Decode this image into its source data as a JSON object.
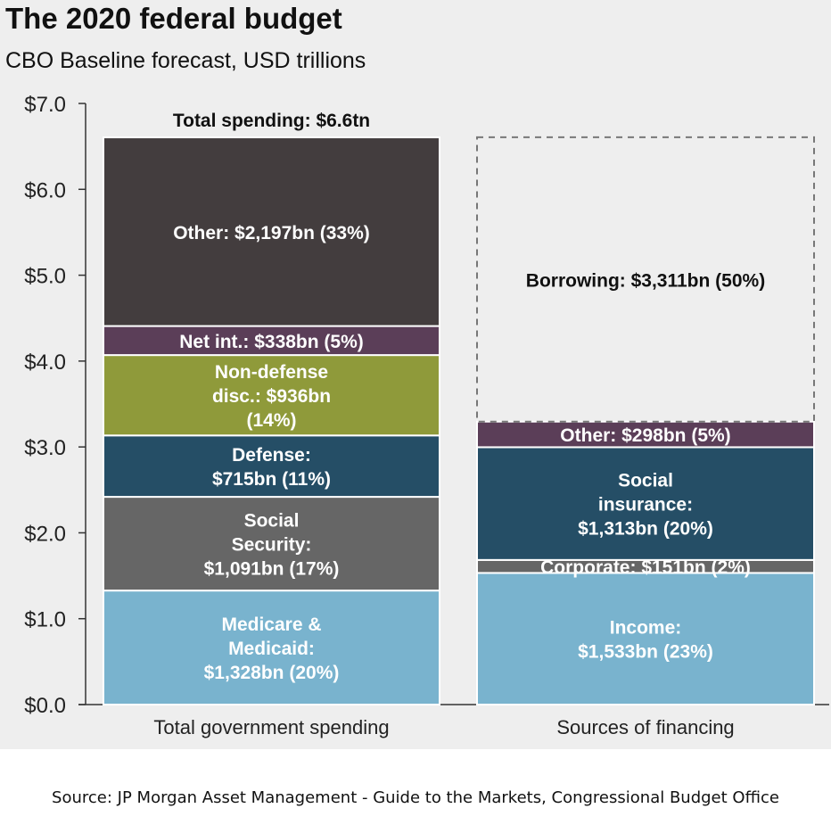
{
  "chart_data": {
    "type": "bar",
    "stacked": true,
    "title": "The 2020 federal budget",
    "subtitle": "CBO Baseline forecast, USD trillions",
    "ylim": [
      0,
      7
    ],
    "yticks": [
      "$0.0",
      "$1.0",
      "$2.0",
      "$3.0",
      "$4.0",
      "$5.0",
      "$6.0",
      "$7.0"
    ],
    "categories": [
      "Total government spending",
      "Sources of financing"
    ],
    "total_label": "Total spending: $6.6tn",
    "bars": [
      {
        "category": "Total government spending",
        "segments": [
          {
            "value": 1.328,
            "color": "#79b3ce",
            "text_color": "#ffffff",
            "lines": [
              "Medicare &",
              "Medicaid:",
              "$1,328bn (20%)"
            ]
          },
          {
            "value": 1.091,
            "color": "#666666",
            "text_color": "#ffffff",
            "lines": [
              "Social",
              "Security:",
              "$1,091bn (17%)"
            ]
          },
          {
            "value": 0.715,
            "color": "#254e66",
            "text_color": "#ffffff",
            "lines": [
              "Defense:",
              "$715bn (11%)"
            ]
          },
          {
            "value": 0.936,
            "color": "#8f9a3a",
            "text_color": "#ffffff",
            "lines": [
              "Non-defense",
              "disc.: $936bn",
              "(14%)"
            ]
          },
          {
            "value": 0.338,
            "color": "#5b3e58",
            "text_color": "#ffffff",
            "lines": [
              "Net int.: $338bn (5%)"
            ]
          },
          {
            "value": 2.197,
            "color": "#433d3e",
            "text_color": "#ffffff",
            "lines": [
              "Other: $2,197bn (33%)"
            ]
          }
        ]
      },
      {
        "category": "Sources of financing",
        "segments": [
          {
            "value": 1.533,
            "color": "#79b3ce",
            "text_color": "#ffffff",
            "lines": [
              "Income:",
              "$1,533bn (23%)"
            ]
          },
          {
            "value": 0.151,
            "color": "#666666",
            "text_color": "#ffffff",
            "lines": [
              "Corporate: $151bn (2%)"
            ]
          },
          {
            "value": 1.313,
            "color": "#254e66",
            "text_color": "#ffffff",
            "lines": [
              "Social",
              "insurance:",
              "$1,313bn (20%)"
            ]
          },
          {
            "value": 0.298,
            "color": "#5b3e58",
            "text_color": "#ffffff",
            "lines": [
              "Other: $298bn (5%)"
            ]
          },
          {
            "value": 3.311,
            "color": "none",
            "dashed": true,
            "text_color": "#111111",
            "lines": [
              "Borrowing: $3,311bn (50%)"
            ]
          }
        ]
      }
    ]
  },
  "source": "Source:  JP Morgan Asset Management - Guide to the Markets, Congressional Budget Office"
}
